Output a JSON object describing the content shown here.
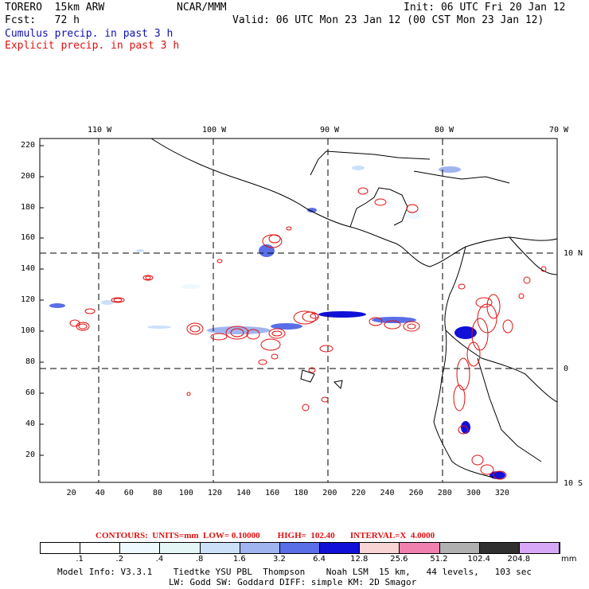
{
  "header": {
    "model": "TORERO  15km ARW",
    "center": "NCAR/MMM",
    "init": "Init: 06 UTC Fri 20 Jan 12",
    "fcst": "Fcst:   72 h",
    "valid": "Valid: 06 UTC Mon 23 Jan 12 (00 CST Mon 23 Jan 12)",
    "cumulus": "Cumulus precip. in past 3 h",
    "explicit": "Explicit precip. in past 3 h"
  },
  "map": {
    "lon_labels": [
      "110 W",
      "100 W",
      "90 W",
      "80 W",
      "70 W"
    ],
    "lat_labels": [
      "10 N",
      "0",
      "10 S"
    ],
    "y_ticks": [
      "220",
      "200",
      "180",
      "160",
      "140",
      "120",
      "100",
      "80",
      "60",
      "40",
      "20"
    ],
    "x_ticks": [
      "20",
      "40",
      "60",
      "80",
      "100",
      "120",
      "140",
      "160",
      "180",
      "200",
      "220",
      "240",
      "260",
      "280",
      "300",
      "320"
    ],
    "grid_style": "dashed",
    "colors": {
      "contour": "#e01010",
      "cumulus_light": "#c8dcf8",
      "cumulus_mid": "#5a6ee8",
      "cumulus_dark": "#1010d8",
      "coast": "#000000"
    }
  },
  "contours_line": "CONTOURS:  UNITS=mm  LOW= 0.10000        HIGH=  102.40       INTERVAL=X  4.0000",
  "colorbar": {
    "labels": [
      ".1",
      ".2",
      ".4",
      ".8",
      "1.6",
      "3.2",
      "6.4",
      "12.8",
      "25.6",
      "51.2",
      "102.4",
      "204.8"
    ],
    "unit": "mm",
    "colors": [
      "#ffffff",
      "#ffffff",
      "#eef8ff",
      "#e4f6f6",
      "#cce0f8",
      "#a0b4f0",
      "#5a6ee8",
      "#1010d8",
      "#f8d4d4",
      "#f080b0",
      "#b0b0b0",
      "#303030",
      "#d8a8f8"
    ]
  },
  "model_info": {
    "line1": "Model Info: V3.3.1    Tiedtke YSU PBL  Thompson    Noah LSM  15 km,   44 levels,   103 sec",
    "line2": "LW: Godd SW: Goddard DIFF: simple KM: 2D Smagor"
  }
}
